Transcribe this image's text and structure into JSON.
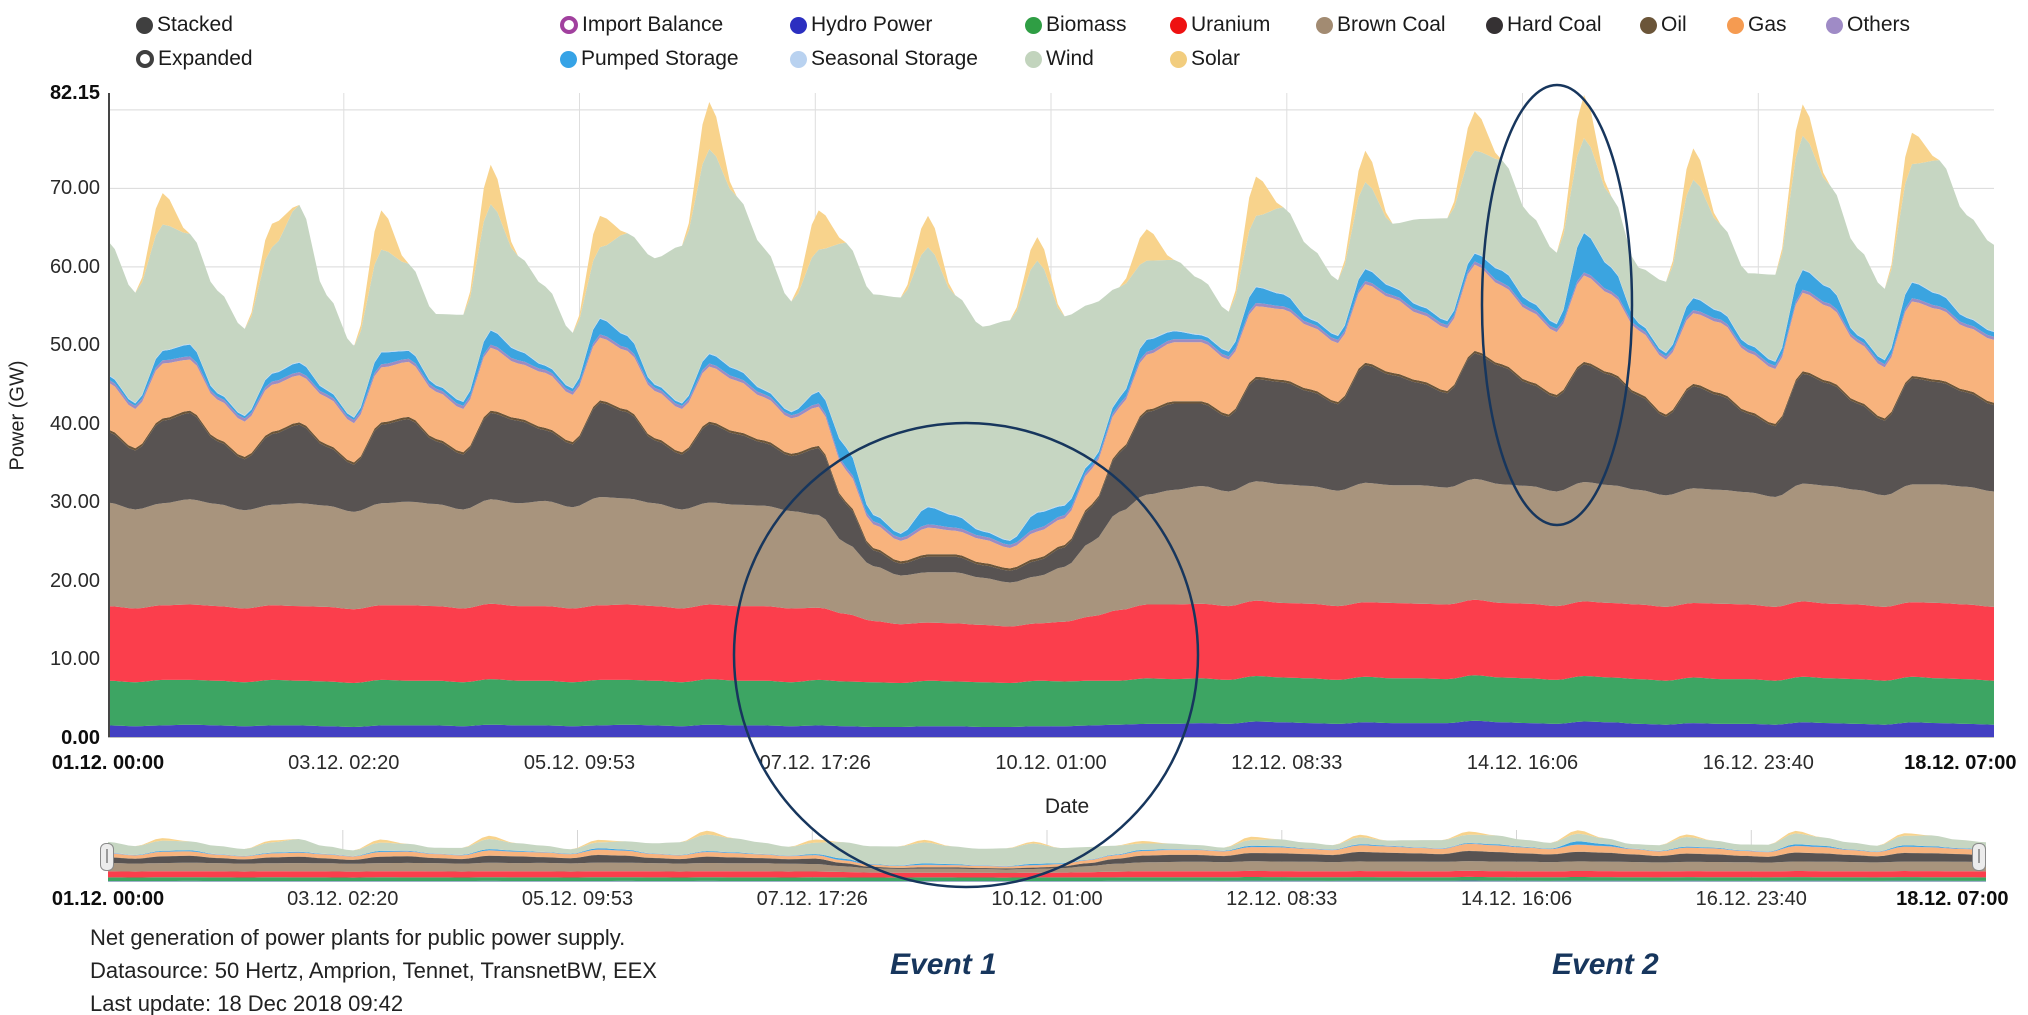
{
  "legend": {
    "row1": [
      {
        "label": "Stacked",
        "color": "#3f3f3f",
        "style": "filled"
      },
      {
        "label": "Import Balance",
        "color": "#a1409e",
        "style": "ring"
      },
      {
        "label": "Hydro Power",
        "color": "#2b2fc0",
        "style": "filled"
      },
      {
        "label": "Biomass",
        "color": "#2f9e44",
        "style": "filled"
      },
      {
        "label": "Uranium",
        "color": "#ee1111",
        "style": "filled"
      },
      {
        "label": "Brown Coal",
        "color": "#a28b72",
        "style": "filled"
      },
      {
        "label": "Hard Coal",
        "color": "#353133",
        "style": "filled"
      },
      {
        "label": "Oil",
        "color": "#6b5539",
        "style": "filled"
      },
      {
        "label": "Gas",
        "color": "#f59b51",
        "style": "filled"
      },
      {
        "label": "Others",
        "color": "#9f8bc6",
        "style": "filled"
      }
    ],
    "row2": [
      {
        "label": "Expanded",
        "color": "#3f3f3f",
        "style": "ring"
      },
      {
        "label": "Pumped Storage",
        "color": "#36a3e6",
        "style": "filled"
      },
      {
        "label": "Seasonal Storage",
        "color": "#b9d2f0",
        "style": "filled"
      },
      {
        "label": "Wind",
        "color": "#c2d4bd",
        "style": "filled"
      },
      {
        "label": "Solar",
        "color": "#f2cd7e",
        "style": "filled"
      }
    ]
  },
  "chart_data": {
    "type": "area",
    "stacked": true,
    "title": "",
    "ylabel": "Power (GW)",
    "xlabel": "Date",
    "ymin": 0,
    "ymax": 82.15,
    "x_start": "01.12. 00:00",
    "x_end": "18.12. 07:00",
    "x_step_hours": 6,
    "grid": true,
    "ygrid": [
      80,
      70,
      60,
      50,
      40,
      30,
      20,
      10
    ],
    "yticks": [
      {
        "value": 82.15,
        "label": "82.15",
        "bold": true
      },
      {
        "value": 70,
        "label": "70.00",
        "bold": false
      },
      {
        "value": 60,
        "label": "60.00",
        "bold": false
      },
      {
        "value": 50,
        "label": "50.00",
        "bold": false
      },
      {
        "value": 40,
        "label": "40.00",
        "bold": false
      },
      {
        "value": 30,
        "label": "30.00",
        "bold": false
      },
      {
        "value": 20,
        "label": "20.00",
        "bold": false
      },
      {
        "value": 10,
        "label": "10.00",
        "bold": false
      },
      {
        "value": 0,
        "label": "0.00",
        "bold": true
      }
    ],
    "xticks": [
      {
        "label": "01.12. 00:00",
        "bold": true
      },
      {
        "label": "03.12. 02:20",
        "bold": false
      },
      {
        "label": "05.12. 09:53",
        "bold": false
      },
      {
        "label": "07.12. 17:26",
        "bold": false
      },
      {
        "label": "10.12. 01:00",
        "bold": false
      },
      {
        "label": "12.12. 08:33",
        "bold": false
      },
      {
        "label": "14.12. 16:06",
        "bold": false
      },
      {
        "label": "16.12. 23:40",
        "bold": false
      },
      {
        "label": "18.12. 07:00",
        "bold": true
      }
    ],
    "series": [
      {
        "id": "hydro",
        "name": "Hydro Power",
        "color": "#4340c2",
        "values": [
          1.6,
          1.5,
          1.6,
          1.7,
          1.6,
          1.5,
          1.6,
          1.6,
          1.5,
          1.4,
          1.6,
          1.6,
          1.6,
          1.5,
          1.7,
          1.6,
          1.6,
          1.5,
          1.6,
          1.7,
          1.6,
          1.5,
          1.7,
          1.6,
          1.6,
          1.5,
          1.6,
          1.5,
          1.4,
          1.4,
          1.5,
          1.5,
          1.4,
          1.4,
          1.5,
          1.5,
          1.6,
          1.7,
          1.8,
          1.8,
          1.9,
          1.8,
          2.1,
          2.0,
          1.9,
          1.8,
          2.0,
          1.9,
          1.9,
          1.9,
          2.2,
          2.0,
          1.9,
          1.8,
          2.1,
          2.0,
          1.8,
          1.7,
          1.9,
          1.8,
          1.8,
          1.7,
          2.0,
          1.9,
          1.8,
          1.7,
          2.0,
          1.9,
          1.8,
          1.7
        ]
      },
      {
        "id": "biomass",
        "name": "Biomass",
        "color": "#3da563",
        "values": [
          5.7,
          5.6,
          5.8,
          5.7,
          5.7,
          5.6,
          5.8,
          5.7,
          5.7,
          5.6,
          5.8,
          5.7,
          5.7,
          5.6,
          5.8,
          5.7,
          5.7,
          5.6,
          5.8,
          5.7,
          5.7,
          5.6,
          5.8,
          5.7,
          5.7,
          5.6,
          5.8,
          5.7,
          5.7,
          5.6,
          5.8,
          5.7,
          5.7,
          5.6,
          5.8,
          5.7,
          5.7,
          5.6,
          5.8,
          5.7,
          5.7,
          5.6,
          5.8,
          5.7,
          5.7,
          5.6,
          5.8,
          5.7,
          5.7,
          5.6,
          5.8,
          5.7,
          5.7,
          5.6,
          5.8,
          5.7,
          5.7,
          5.6,
          5.8,
          5.7,
          5.7,
          5.6,
          5.8,
          5.7,
          5.7,
          5.6,
          5.8,
          5.7,
          5.7,
          5.6
        ]
      },
      {
        "id": "uranium",
        "name": "Uranium",
        "color": "#fb3e4c",
        "values": [
          9.5,
          9.4,
          9.5,
          9.6,
          9.5,
          9.4,
          9.5,
          9.5,
          9.5,
          9.4,
          9.5,
          9.6,
          9.5,
          9.4,
          9.6,
          9.5,
          9.5,
          9.4,
          9.5,
          9.6,
          9.5,
          9.4,
          9.5,
          9.5,
          9.5,
          9.4,
          9.2,
          8.6,
          7.8,
          7.5,
          7.4,
          7.4,
          7.3,
          7.2,
          7.3,
          7.6,
          8.2,
          9.0,
          9.4,
          9.5,
          9.5,
          9.4,
          9.6,
          9.5,
          9.5,
          9.4,
          9.5,
          9.6,
          9.5,
          9.5,
          9.6,
          9.5,
          9.5,
          9.4,
          9.5,
          9.5,
          9.5,
          9.4,
          9.5,
          9.6,
          9.5,
          9.4,
          9.6,
          9.5,
          9.5,
          9.4,
          9.5,
          9.6,
          9.5,
          9.4
        ]
      },
      {
        "id": "brown_coal",
        "name": "Brown Coal",
        "color": "#a8947d",
        "values": [
          13.2,
          12.6,
          13.0,
          13.4,
          13.0,
          12.5,
          12.8,
          13.1,
          12.9,
          12.4,
          13.0,
          13.2,
          13.0,
          12.6,
          13.3,
          13.1,
          13.4,
          12.9,
          13.8,
          13.5,
          13.1,
          12.6,
          13.0,
          12.9,
          12.8,
          12.4,
          11.8,
          9.0,
          7.0,
          6.2,
          6.4,
          6.5,
          6.0,
          5.6,
          6.0,
          7.0,
          9.5,
          12.5,
          14.0,
          14.6,
          15.0,
          14.6,
          15.2,
          15.1,
          15.0,
          14.7,
          15.2,
          15.0,
          15.1,
          14.9,
          15.4,
          15.1,
          15.0,
          14.6,
          15.2,
          15.0,
          14.6,
          14.2,
          14.6,
          14.5,
          14.3,
          14.0,
          15.0,
          15.0,
          14.6,
          14.2,
          15.0,
          15.1,
          15.0,
          14.7
        ]
      },
      {
        "id": "hard_coal",
        "name": "Hard Coal",
        "color": "#585352",
        "values": [
          9.0,
          7.5,
          10.5,
          11.0,
          8.0,
          6.5,
          9.0,
          10.0,
          7.5,
          6.0,
          10.0,
          10.5,
          8.0,
          7.0,
          11.0,
          10.5,
          9.0,
          8.0,
          12.0,
          11.0,
          8.0,
          7.0,
          10.0,
          9.0,
          8.0,
          7.0,
          8.5,
          5.0,
          2.0,
          1.5,
          2.0,
          2.0,
          1.6,
          1.5,
          2.0,
          2.5,
          4.5,
          7.5,
          10.5,
          11.0,
          10.5,
          9.5,
          13.0,
          13.0,
          12.0,
          11.0,
          15.0,
          14.0,
          13.0,
          12.0,
          16.0,
          15.0,
          13.0,
          12.0,
          15.0,
          14.0,
          12.0,
          10.0,
          13.0,
          12.0,
          10.0,
          9.0,
          14.0,
          13.0,
          11.0,
          9.5,
          13.5,
          13.0,
          12.0,
          11.0
        ]
      },
      {
        "id": "oil",
        "name": "Oil",
        "color": "#6b5539",
        "values": [
          0.3,
          0.3,
          0.3,
          0.3,
          0.3,
          0.3,
          0.3,
          0.3,
          0.3,
          0.3,
          0.3,
          0.3,
          0.3,
          0.3,
          0.3,
          0.3,
          0.3,
          0.3,
          0.3,
          0.3,
          0.3,
          0.3,
          0.3,
          0.3,
          0.3,
          0.3,
          0.3,
          0.3,
          0.3,
          0.3,
          0.3,
          0.3,
          0.3,
          0.3,
          0.3,
          0.3,
          0.3,
          0.3,
          0.3,
          0.3,
          0.3,
          0.3,
          0.3,
          0.3,
          0.3,
          0.3,
          0.3,
          0.3,
          0.3,
          0.3,
          0.3,
          0.3,
          0.3,
          0.3,
          0.3,
          0.3,
          0.3,
          0.3,
          0.3,
          0.3,
          0.3,
          0.3,
          0.3,
          0.3,
          0.3,
          0.3,
          0.3,
          0.3,
          0.3,
          0.3
        ]
      },
      {
        "id": "gas",
        "name": "Gas",
        "color": "#f8b37d",
        "values": [
          6.0,
          5.0,
          7.0,
          6.5,
          5.0,
          4.5,
          6.0,
          6.0,
          6.0,
          5.0,
          7.0,
          7.0,
          6.0,
          5.5,
          8.0,
          7.0,
          7.0,
          6.0,
          8.0,
          7.5,
          6.0,
          5.5,
          7.0,
          6.5,
          5.5,
          4.5,
          5.0,
          4.0,
          3.0,
          2.6,
          3.4,
          3.0,
          3.0,
          2.6,
          3.4,
          3.4,
          4.5,
          5.5,
          7.0,
          7.5,
          7.5,
          7.0,
          9.0,
          9.0,
          8.0,
          7.5,
          10.0,
          9.5,
          8.5,
          8.0,
          11.0,
          10.0,
          9.0,
          8.0,
          11.0,
          10.0,
          8.0,
          7.0,
          9.0,
          9.0,
          7.5,
          7.0,
          10.0,
          9.5,
          7.5,
          6.5,
          9.5,
          9.0,
          8.0,
          8.0
        ]
      },
      {
        "id": "others",
        "name": "Others",
        "color": "#9d8cc2",
        "values": [
          0.4,
          0.4,
          0.4,
          0.4,
          0.4,
          0.4,
          0.4,
          0.4,
          0.4,
          0.4,
          0.4,
          0.4,
          0.4,
          0.4,
          0.4,
          0.4,
          0.4,
          0.4,
          0.4,
          0.4,
          0.4,
          0.4,
          0.4,
          0.4,
          0.4,
          0.4,
          0.4,
          0.4,
          0.4,
          0.4,
          0.4,
          0.4,
          0.4,
          0.4,
          0.4,
          0.4,
          0.4,
          0.4,
          0.4,
          0.4,
          0.4,
          0.4,
          0.4,
          0.4,
          0.4,
          0.4,
          0.4,
          0.4,
          0.4,
          0.4,
          0.4,
          0.4,
          0.4,
          0.4,
          0.4,
          0.4,
          0.4,
          0.4,
          0.4,
          0.4,
          0.4,
          0.4,
          0.4,
          0.4,
          0.4,
          0.4,
          0.4,
          0.4,
          0.4,
          0.4
        ]
      },
      {
        "id": "pumped_storage",
        "name": "Pumped Storage",
        "color": "#3ba4e0",
        "values": [
          0.5,
          0.3,
          1.2,
          1.5,
          0.4,
          0.3,
          1.0,
          1.2,
          0.5,
          0.3,
          1.5,
          1.0,
          0.4,
          0.5,
          1.8,
          1.2,
          0.5,
          0.4,
          2.0,
          1.5,
          0.4,
          0.3,
          1.2,
          1.0,
          0.5,
          0.4,
          1.5,
          2.5,
          0.8,
          0.5,
          2.2,
          1.5,
          0.6,
          0.5,
          2.0,
          1.2,
          0.5,
          0.8,
          1.5,
          1.0,
          0.5,
          0.6,
          2.0,
          1.5,
          0.5,
          0.5,
          1.5,
          1.0,
          0.6,
          0.5,
          1.0,
          1.5,
          0.8,
          0.6,
          5.0,
          3.0,
          0.5,
          0.4,
          1.5,
          1.0,
          0.6,
          0.5,
          2.5,
          2.0,
          0.5,
          0.5,
          2.0,
          1.5,
          0.8,
          0.6
        ]
      },
      {
        "id": "seasonal_storage",
        "name": "Seasonal Storage",
        "color": "#bdd7f2",
        "values": [
          0.1,
          0.1,
          0.1,
          0.1,
          0.1,
          0.1,
          0.1,
          0.1,
          0.1,
          0.1,
          0.1,
          0.1,
          0.1,
          0.1,
          0.1,
          0.1,
          0.1,
          0.1,
          0.1,
          0.1,
          0.1,
          0.1,
          0.1,
          0.1,
          0.1,
          0.1,
          0.1,
          0.1,
          0.1,
          0.1,
          0.1,
          0.1,
          0.1,
          0.1,
          0.1,
          0.1,
          0.1,
          0.1,
          0.1,
          0.1,
          0.1,
          0.1,
          0.1,
          0.1,
          0.1,
          0.1,
          0.1,
          0.1,
          0.1,
          0.1,
          0.1,
          0.1,
          0.1,
          0.1,
          0.1,
          0.1,
          0.1,
          0.1,
          0.1,
          0.1,
          0.1,
          0.1,
          0.1,
          0.1,
          0.1,
          0.1,
          0.1,
          0.1,
          0.1,
          0.1
        ]
      },
      {
        "id": "wind",
        "name": "Wind",
        "color": "#c6d6c2",
        "values": [
          17,
          14,
          16,
          14,
          13,
          11,
          16,
          20,
          12,
          9,
          13,
          11,
          9,
          11,
          16,
          12,
          10,
          7,
          9,
          13,
          16,
          20,
          26,
          22,
          18,
          14,
          18,
          26,
          28,
          30,
          33,
          28,
          26,
          28,
          32,
          24,
          20,
          14,
          10,
          9,
          7,
          5,
          9,
          11,
          9,
          7,
          11,
          8,
          11,
          13,
          13,
          14,
          11,
          9,
          12,
          9,
          7,
          9,
          15,
          11,
          9,
          11,
          17,
          13,
          11,
          9,
          15,
          17,
          13,
          11
        ]
      },
      {
        "id": "solar",
        "name": "Solar",
        "color": "#f8d38c",
        "values": [
          0,
          0,
          4,
          0,
          0,
          0,
          3,
          0,
          0,
          0,
          5,
          0,
          0,
          0,
          5,
          0,
          0,
          0,
          4,
          0,
          0,
          0,
          6,
          0,
          0,
          0,
          5,
          0,
          0,
          0,
          4,
          0,
          0,
          0,
          3,
          0,
          0,
          0,
          4,
          0,
          0,
          0,
          5,
          0,
          0,
          0,
          4,
          0,
          0,
          0,
          5,
          0,
          0,
          0,
          5.5,
          0,
          0,
          0,
          4,
          0,
          0,
          0,
          4,
          0,
          0,
          0,
          4,
          0,
          0,
          0
        ]
      }
    ]
  },
  "annotations": {
    "event1": "Event 1",
    "event2": "Event 2",
    "accent_color": "#17365d"
  },
  "footer": {
    "line1": "Net generation of power plants for public power supply.",
    "line2": "Datasource: 50 Hertz, Amprion, Tennet, TransnetBW, EEX",
    "line3": "Last update: 18 Dec 2018 09:42"
  }
}
